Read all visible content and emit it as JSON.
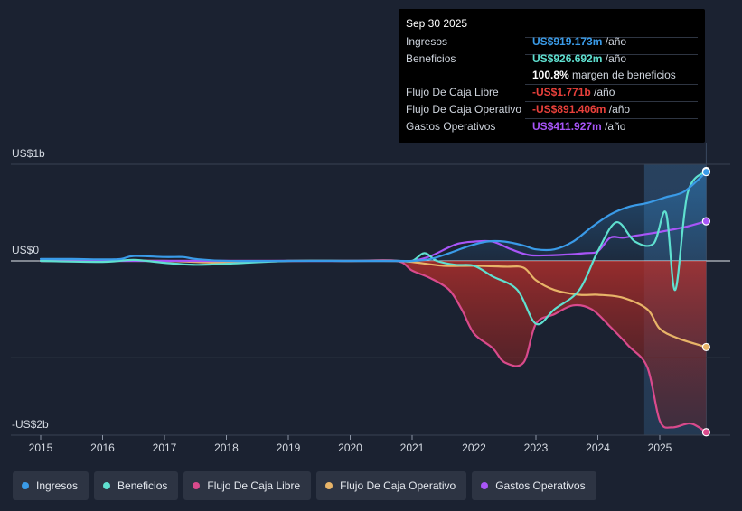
{
  "tooltip": {
    "date": "Sep 30 2025",
    "rows": [
      {
        "label": "Ingresos",
        "value": "US$919.173m",
        "unit": "/año",
        "color": "#3a9be8"
      },
      {
        "label": "Beneficios",
        "value": "US$926.692m",
        "unit": "/año",
        "color": "#5fe0d0"
      },
      {
        "label": "",
        "value": "100.8%",
        "unit": "margen de beneficios",
        "color": "#ffffff"
      },
      {
        "label": "Flujo De Caja Libre",
        "value": "-US$1.771b",
        "unit": "/año",
        "color": "#e8403b"
      },
      {
        "label": "Flujo De Caja Operativo",
        "value": "-US$891.406m",
        "unit": "/año",
        "color": "#e8403b"
      },
      {
        "label": "Gastos Operativos",
        "value": "US$411.927m",
        "unit": "/año",
        "color": "#a855f7"
      }
    ]
  },
  "legend": [
    {
      "label": "Ingresos",
      "color": "#3a9be8"
    },
    {
      "label": "Beneficios",
      "color": "#5fe0d0"
    },
    {
      "label": "Flujo De Caja Libre",
      "color": "#d94a8c"
    },
    {
      "label": "Flujo De Caja Operativo",
      "color": "#e8b468"
    },
    {
      "label": "Gastos Operativos",
      "color": "#a855f7"
    }
  ],
  "chart_data": {
    "type": "line",
    "title": "",
    "xlabel": "",
    "ylabel": "",
    "ylim": [
      -1.8,
      1.0
    ],
    "y_tick_values": [
      1.0,
      0.0,
      -1.8
    ],
    "y_tick_labels": [
      "US$1b",
      "US$0",
      "-US$2b"
    ],
    "x_ticks": [
      2015,
      2016,
      2017,
      2018,
      2019,
      2020,
      2021,
      2022,
      2023,
      2024,
      2025
    ],
    "x_tick_labels": [
      "2015",
      "2016",
      "2017",
      "2018",
      "2019",
      "2020",
      "2021",
      "2022",
      "2023",
      "2024",
      "2025"
    ],
    "xlim": [
      2014.6,
      2026.2
    ],
    "highlight_start": 2024.75,
    "highlight_end": 2025.75,
    "series": [
      {
        "name": "Ingresos",
        "color": "#3a9be8",
        "x": [
          2015,
          2015.5,
          2016,
          2016.3,
          2016.5,
          2017,
          2017.3,
          2017.5,
          2018,
          2019,
          2020,
          2020.75,
          2021,
          2021.3,
          2021.6,
          2021.9,
          2022.2,
          2022.5,
          2022.8,
          2023,
          2023.3,
          2023.6,
          2023.9,
          2024.2,
          2024.5,
          2024.8,
          2025.1,
          2025.4,
          2025.75
        ],
        "y": [
          0.02,
          0.02,
          0.015,
          0.02,
          0.05,
          0.04,
          0.04,
          0.02,
          0.0,
          0.0,
          0.0,
          0.0,
          0.0,
          0.02,
          0.08,
          0.15,
          0.2,
          0.2,
          0.16,
          0.12,
          0.12,
          0.2,
          0.35,
          0.48,
          0.56,
          0.6,
          0.66,
          0.72,
          0.92
        ]
      },
      {
        "name": "Beneficios",
        "color": "#5fe0d0",
        "x": [
          2015,
          2016,
          2016.5,
          2017,
          2017.5,
          2018,
          2019,
          2020,
          2020.75,
          2021,
          2021.2,
          2021.4,
          2021.7,
          2022,
          2022.3,
          2022.7,
          2023,
          2023.3,
          2023.7,
          2024,
          2024.3,
          2024.6,
          2024.9,
          2025.1,
          2025.25,
          2025.45,
          2025.75
        ],
        "y": [
          0.0,
          -0.01,
          0.01,
          -0.02,
          -0.04,
          -0.03,
          0.0,
          0.0,
          0.0,
          0.0,
          0.08,
          0.0,
          -0.04,
          -0.05,
          -0.16,
          -0.3,
          -0.65,
          -0.5,
          -0.3,
          0.1,
          0.4,
          0.2,
          0.18,
          0.5,
          -0.3,
          0.7,
          0.93
        ]
      },
      {
        "name": "Flujo De Caja Libre",
        "color": "#d94a8c",
        "x": [
          2015,
          2016,
          2017,
          2018,
          2019,
          2020,
          2020.75,
          2021,
          2021.3,
          2021.6,
          2021.8,
          2022,
          2022.3,
          2022.5,
          2022.8,
          2023,
          2023.3,
          2023.6,
          2023.9,
          2024.2,
          2024.5,
          2024.8,
          2025,
          2025.2,
          2025.5,
          2025.75
        ],
        "y": [
          0.0,
          0.0,
          0.0,
          0.0,
          0.0,
          0.0,
          0.0,
          -0.1,
          -0.18,
          -0.3,
          -0.5,
          -0.75,
          -0.9,
          -1.05,
          -1.05,
          -0.65,
          -0.55,
          -0.46,
          -0.5,
          -0.68,
          -0.88,
          -1.1,
          -1.65,
          -1.72,
          -1.68,
          -1.77
        ]
      },
      {
        "name": "Flujo De Caja Operativo",
        "color": "#e8b468",
        "x": [
          2015,
          2016,
          2017,
          2018,
          2019,
          2020,
          2020.75,
          2021,
          2021.5,
          2022,
          2022.5,
          2022.8,
          2023,
          2023.3,
          2023.7,
          2024,
          2024.4,
          2024.8,
          2025,
          2025.3,
          2025.75
        ],
        "y": [
          0.0,
          0.0,
          0.0,
          -0.02,
          0.0,
          0.0,
          0.0,
          -0.01,
          -0.05,
          -0.05,
          -0.06,
          -0.07,
          -0.2,
          -0.3,
          -0.35,
          -0.35,
          -0.38,
          -0.5,
          -0.7,
          -0.8,
          -0.89
        ]
      },
      {
        "name": "Gastos Operativos",
        "color": "#a855f7",
        "x": [
          2015,
          2016,
          2017,
          2018,
          2019,
          2020,
          2020.75,
          2021,
          2021.3,
          2021.7,
          2022,
          2022.3,
          2022.6,
          2022.9,
          2023.3,
          2023.8,
          2024,
          2024.2,
          2024.4,
          2024.6,
          2025,
          2025.4,
          2025.75
        ],
        "y": [
          0.0,
          0.0,
          0.0,
          0.0,
          0.0,
          0.0,
          0.0,
          0.0,
          0.05,
          0.17,
          0.2,
          0.2,
          0.12,
          0.06,
          0.06,
          0.08,
          0.1,
          0.24,
          0.24,
          0.26,
          0.3,
          0.35,
          0.41
        ]
      }
    ]
  }
}
